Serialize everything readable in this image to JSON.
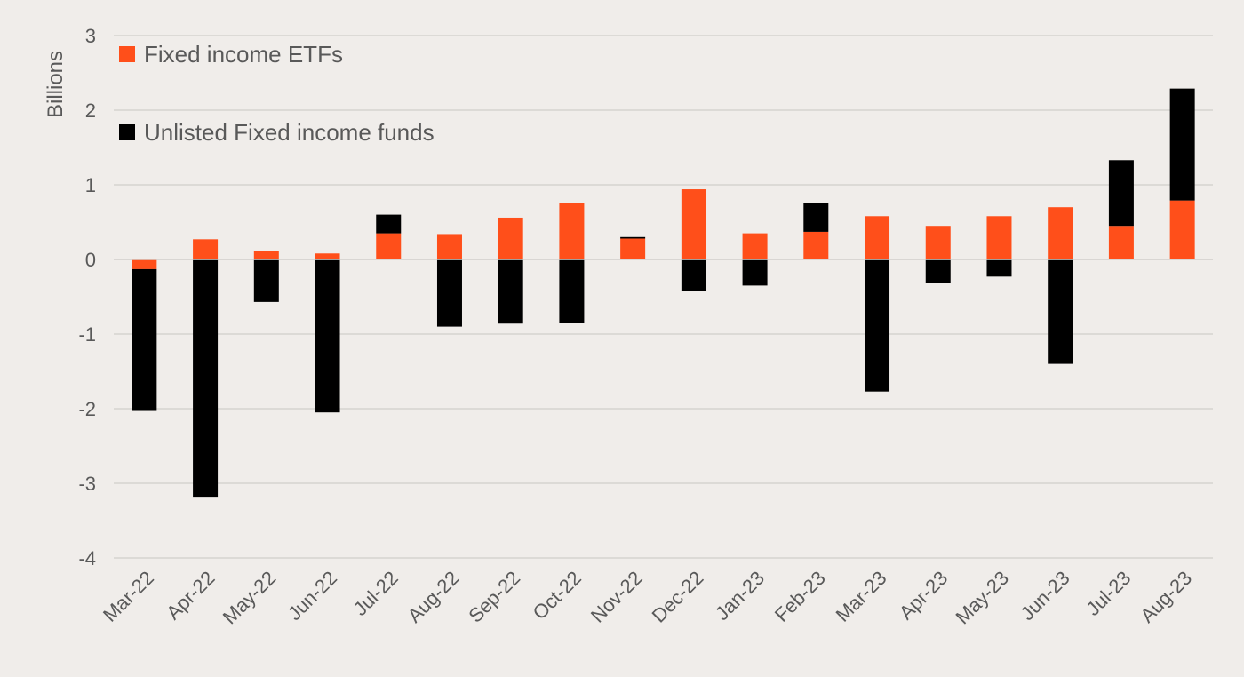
{
  "chart_data": {
    "type": "bar",
    "stacked": true,
    "ylabel": "Billions",
    "ylim": [
      -4,
      3
    ],
    "yticks": [
      3,
      2,
      1,
      0,
      -1,
      -2,
      -3,
      -4
    ],
    "grid": true,
    "legend_position": "top-left",
    "categories": [
      "Mar-22",
      "Apr-22",
      "May-22",
      "Jun-22",
      "Jul-22",
      "Aug-22",
      "Sep-22",
      "Oct-22",
      "Nov-22",
      "Dec-22",
      "Jan-23",
      "Feb-23",
      "Mar-23",
      "Apr-23",
      "May-23",
      "Jun-23",
      "Jul-23",
      "Aug-23"
    ],
    "series": [
      {
        "name": "Fixed income ETFs",
        "color": "#ff4f1a",
        "values": [
          -0.13,
          0.27,
          0.11,
          0.08,
          0.35,
          0.34,
          0.56,
          0.76,
          0.28,
          0.94,
          0.35,
          0.37,
          0.58,
          0.45,
          0.58,
          0.7,
          0.45,
          0.79
        ]
      },
      {
        "name": "Unlisted Fixed income funds",
        "color": "#000000",
        "values": [
          -1.9,
          -3.18,
          -0.57,
          -2.05,
          0.25,
          -0.9,
          -0.86,
          -0.85,
          0.02,
          -0.42,
          -0.35,
          0.38,
          -1.77,
          -0.31,
          -0.23,
          -1.4,
          0.88,
          1.5
        ]
      }
    ]
  }
}
